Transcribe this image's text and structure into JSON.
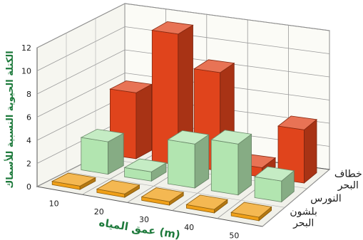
{
  "chart_data": {
    "type": "bar",
    "subtype": "3d-bar",
    "title": "",
    "xlabel": "عمق المياه (m)",
    "ylabel": "الكتلة الحيوية النسبية للأسماك",
    "ylim": [
      0,
      12
    ],
    "yticks": [
      "0",
      "2",
      "4",
      "6",
      "8",
      "10",
      "12"
    ],
    "categories": [
      "10",
      "20",
      "30",
      "40",
      "50"
    ],
    "series": [
      {
        "name": "بلشون البحر",
        "values": [
          0.3,
          0.3,
          0.3,
          0.3,
          0.3
        ]
      },
      {
        "name": "النورس",
        "values": [
          2.8,
          0.8,
          3.8,
          4.4,
          1.8
        ]
      },
      {
        "name": "خطاف البحر",
        "values": [
          5.7,
          11.3,
          8.5,
          0.8,
          4.6
        ]
      }
    ],
    "series_labels": [
      {
        "lines": [
          "بلشون",
          "البحر"
        ]
      },
      {
        "lines": [
          "النورس"
        ]
      },
      {
        "lines": [
          "خطاف",
          "البحر"
        ]
      }
    ],
    "colors": {
      "بلشون البحر": "#f0a018",
      "النورس": "#b2e5b0",
      "خطاف البحر": "#e0441c",
      "axis_text": "#1e7a3c"
    },
    "grid": true,
    "legend": "right"
  }
}
